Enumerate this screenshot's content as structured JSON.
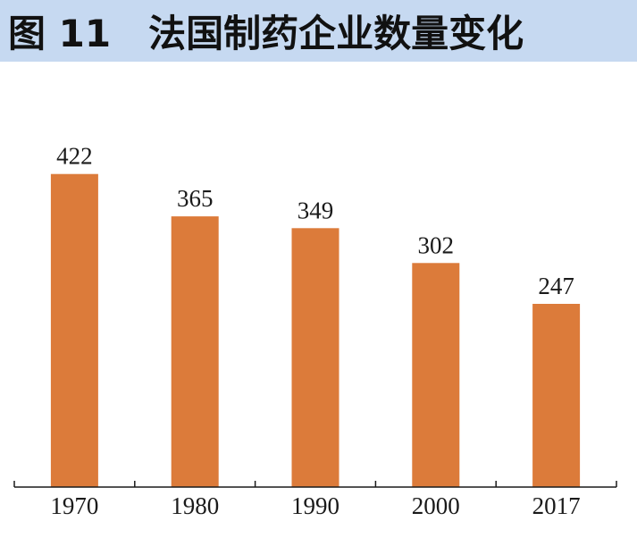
{
  "header": {
    "figure_label": "图 11",
    "title": "法国制药企业数量变化"
  },
  "colors": {
    "title_background": "#c6d9f1",
    "bar": "#dc7b3a",
    "axis": "#1a1a1a",
    "text": "#1a1a1a"
  },
  "chart_data": {
    "type": "bar",
    "title": "法国制药企业数量变化",
    "xlabel": "",
    "ylabel": "",
    "categories": [
      "1970",
      "1980",
      "1990",
      "2000",
      "2017"
    ],
    "values": [
      422,
      365,
      349,
      302,
      247
    ],
    "data_labels": [
      "422",
      "365",
      "349",
      "302",
      "247"
    ],
    "ylim": [
      0,
      500
    ],
    "grid": false,
    "legend": "none",
    "y_axis_visible": false
  }
}
